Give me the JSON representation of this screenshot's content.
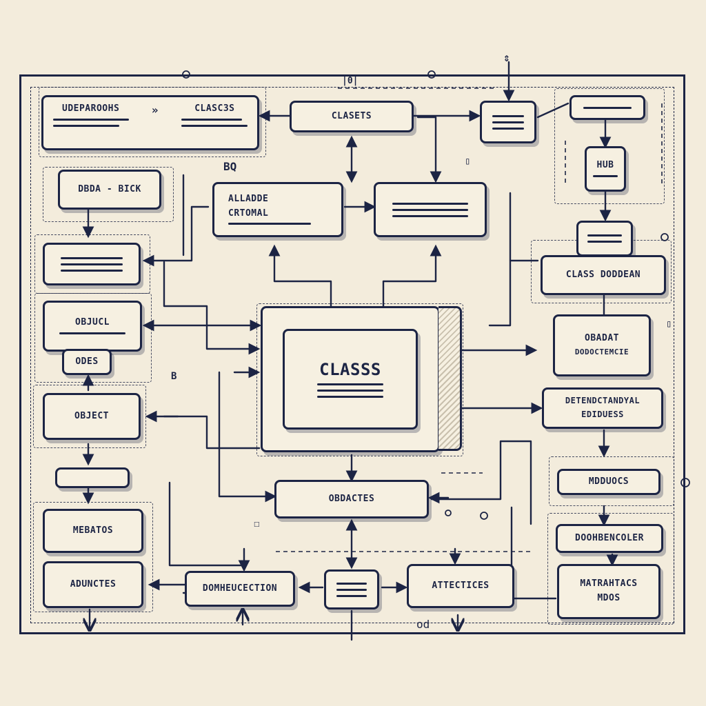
{
  "boxes": {
    "top_left": {
      "left": "UDEPAROOHS",
      "right": "CLASC3S"
    },
    "classes_top": "CLASETS",
    "hub": "HUB",
    "dbdiagram": "DBDA - BICK",
    "attribute": {
      "line1": "ALLADDE",
      "line2": "CRTOMAL"
    },
    "class_diagram": "CLASS DODDEAN",
    "object_left": "OBJUCL",
    "odes": "ODES",
    "object": "OBJECT",
    "center_class": "CLASSS",
    "obadat": {
      "title": "OBADAT",
      "subtitle": "DODOCTEMCIE"
    },
    "determinant": {
      "line1": "DETENDCTANDYAL",
      "line2": "EDIDUESS"
    },
    "objactes": "OBDACTES",
    "methods_right": "MDDUOCS",
    "metadata": "MEBATOS",
    "docmodule": "DOOHBENCOLER",
    "matrix": {
      "line1": "MATRAHTACS",
      "line2": "MDOS"
    },
    "adunctes": "ADUNCTES",
    "documentation": "DOMHEUCECTION",
    "attectices": "ATTECTICES"
  },
  "tags": {
    "bd": "BQ",
    "od": "od",
    "pipe": "|0|",
    "b": "B"
  }
}
